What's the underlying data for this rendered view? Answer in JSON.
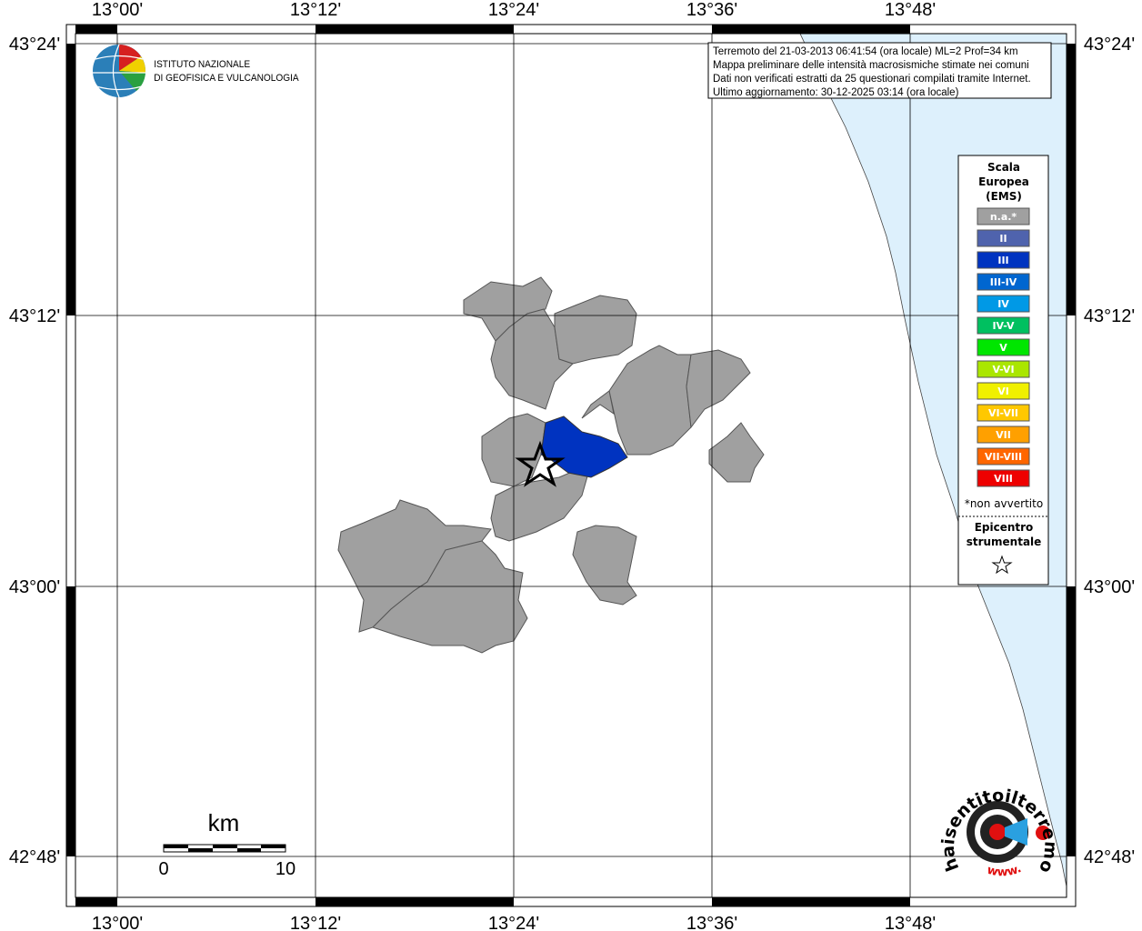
{
  "map": {
    "lon_labels": [
      "13°00'",
      "13°12'",
      "13°24'",
      "13°36'",
      "13°48'"
    ],
    "lat_labels": [
      "43°24'",
      "43°12'",
      "43°00'",
      "42°48'"
    ],
    "logo": {
      "line1": "ISTITUTO NAZIONALE",
      "line2": "DI GEOFISICA E VULCANOLOGIA"
    },
    "info": [
      "Terremoto del 21-03-2013 06:41:54 (ora locale) ML=2 Prof=34 km",
      "Mappa preliminare delle intensità macrosismiche stimate nei comuni",
      "Dati non verificati estratti da 25 questionari compilati tramite Internet.",
      "Ultimo aggiornamento: 30-12-2025 03:14 (ora locale)"
    ],
    "legend": {
      "title": [
        "Scala",
        "Europea",
        "(EMS)"
      ],
      "items": [
        {
          "label": "n.a.*",
          "color": "#a0a0a0"
        },
        {
          "label": "II",
          "color": "#4f63ad"
        },
        {
          "label": "III",
          "color": "#0033c0"
        },
        {
          "label": "III-IV",
          "color": "#0066d0"
        },
        {
          "label": "IV",
          "color": "#0099e6"
        },
        {
          "label": "IV-V",
          "color": "#00c060"
        },
        {
          "label": "V",
          "color": "#00e600"
        },
        {
          "label": "V-VI",
          "color": "#aae600"
        },
        {
          "label": "VI",
          "color": "#f0f000"
        },
        {
          "label": "VI-VII",
          "color": "#ffc800"
        },
        {
          "label": "VII",
          "color": "#ffa000"
        },
        {
          "label": "VII-VIII",
          "color": "#ff6600"
        },
        {
          "label": "VIII",
          "color": "#ee0000"
        }
      ],
      "note": "*non avvertito",
      "epicenter": [
        "Epicentro",
        "strumentale"
      ]
    },
    "scale": {
      "unit": "km",
      "start": "0",
      "end": "10"
    },
    "badge": {
      "site": "haisentitoilterremoto.it",
      "www": "www."
    }
  }
}
